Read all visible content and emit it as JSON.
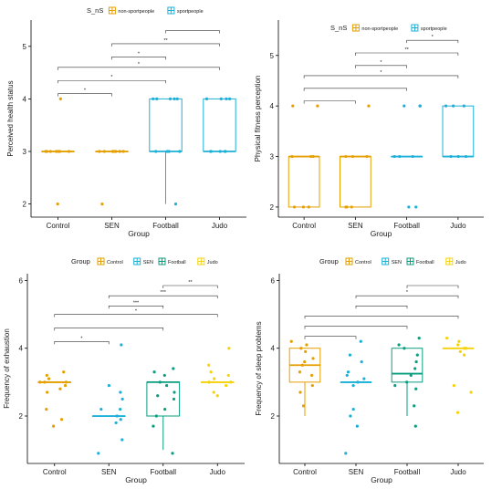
{
  "colors": {
    "orange": "#e69f00",
    "blue": "#1cb0d9",
    "teal": "#0a9e80",
    "yellow": "#f5d20a",
    "axis": "#000000",
    "bracket": "#333333"
  },
  "chart_data": [
    {
      "type": "box",
      "xlabel": "Group",
      "ylabel": "Perceived health status",
      "categories": [
        "Control",
        "SEN",
        "Football",
        "Judo"
      ],
      "yticks": [
        2,
        3,
        4,
        5
      ],
      "ylim": [
        1.75,
        5.5
      ],
      "legend": {
        "title": "S_nS",
        "placement": "top",
        "entries": [
          {
            "label": "non-sportpeople",
            "color": "#e69f00"
          },
          {
            "label": "sportpeople",
            "color": "#1cb0d9"
          }
        ]
      },
      "boxes": [
        {
          "q1": 3,
          "median": 3,
          "q3": 3,
          "whisker_low": 3,
          "whisker_high": 3,
          "color": "#e69f00"
        },
        {
          "q1": 3,
          "median": 3,
          "q3": 3,
          "whisker_low": 3,
          "whisker_high": 3,
          "color": "#e69f00"
        },
        {
          "q1": 3,
          "median": 3,
          "q3": 4,
          "whisker_low": 2,
          "whisker_high": 4,
          "color": "#1cb0d9"
        },
        {
          "q1": 3,
          "median": 3,
          "q3": 4,
          "whisker_low": 3,
          "whisker_high": 4,
          "color": "#1cb0d9"
        }
      ],
      "points": [
        {
          "group": 0,
          "values": [
            2,
            3,
            3,
            3,
            3,
            3,
            3,
            3,
            4
          ]
        },
        {
          "group": 1,
          "values": [
            2,
            3,
            3,
            3,
            3,
            3,
            3,
            3,
            3
          ]
        },
        {
          "group": 2,
          "values": [
            2,
            3,
            3,
            3,
            3,
            4,
            4,
            4,
            4,
            4
          ]
        },
        {
          "group": 3,
          "values": [
            3,
            3,
            3,
            3,
            3,
            4,
            4,
            4,
            4
          ]
        }
      ],
      "brackets": [
        {
          "from": 0,
          "to": 1,
          "y": 4.1,
          "label": "*"
        },
        {
          "from": 0,
          "to": 2,
          "y": 4.35,
          "label": "*"
        },
        {
          "from": 0,
          "to": 3,
          "y": 4.6,
          "label": "*"
        },
        {
          "from": 1,
          "to": 2,
          "y": 4.8,
          "label": "*"
        },
        {
          "from": 1,
          "to": 3,
          "y": 5.05,
          "label": "**"
        },
        {
          "from": 2,
          "to": 3,
          "y": 5.3,
          "label": ""
        }
      ]
    },
    {
      "type": "box",
      "xlabel": "Group",
      "ylabel": "Physical fitness perception",
      "categories": [
        "Control",
        "SEN",
        "Football",
        "Judo"
      ],
      "yticks": [
        2,
        3,
        4,
        5
      ],
      "ylim": [
        1.8,
        5.7
      ],
      "legend": {
        "title": "S_nS",
        "placement": "top",
        "entries": [
          {
            "label": "non-sportpeople",
            "color": "#e69f00"
          },
          {
            "label": "sportpeople",
            "color": "#1cb0d9"
          }
        ]
      },
      "boxes": [
        {
          "q1": 2,
          "median": 3,
          "q3": 3,
          "whisker_low": 2,
          "whisker_high": 3,
          "color": "#e69f00"
        },
        {
          "q1": 2,
          "median": 3,
          "q3": 3,
          "whisker_low": 2,
          "whisker_high": 3,
          "color": "#e69f00"
        },
        {
          "q1": 3,
          "median": 3,
          "q3": 3,
          "whisker_low": 3,
          "whisker_high": 3,
          "color": "#1cb0d9"
        },
        {
          "q1": 3,
          "median": 3,
          "q3": 4,
          "whisker_low": 3,
          "whisker_high": 4,
          "color": "#1cb0d9"
        }
      ],
      "points": [
        {
          "group": 0,
          "values": [
            2,
            2,
            2,
            3,
            3,
            3,
            4,
            4
          ]
        },
        {
          "group": 1,
          "values": [
            2,
            2,
            2,
            3,
            3,
            3,
            4
          ]
        },
        {
          "group": 2,
          "values": [
            2,
            2,
            3,
            3,
            3,
            4,
            4,
            4
          ]
        },
        {
          "group": 3,
          "values": [
            3,
            3,
            3,
            4,
            4,
            4
          ]
        }
      ],
      "brackets": [
        {
          "from": 0,
          "to": 1,
          "y": 4.1,
          "label": ""
        },
        {
          "from": 0,
          "to": 2,
          "y": 4.35,
          "label": ""
        },
        {
          "from": 0,
          "to": 3,
          "y": 4.6,
          "label": "*"
        },
        {
          "from": 1,
          "to": 2,
          "y": 4.8,
          "label": "*"
        },
        {
          "from": 1,
          "to": 3,
          "y": 5.05,
          "label": "**"
        },
        {
          "from": 2,
          "to": 3,
          "y": 5.3,
          "label": "*"
        }
      ]
    },
    {
      "type": "box",
      "xlabel": "Group",
      "ylabel": "Frequency of exhaustion",
      "categories": [
        "Control",
        "SEN",
        "Football",
        "Judo"
      ],
      "yticks": [
        2,
        4,
        6
      ],
      "ylim": [
        0.6,
        6.2
      ],
      "legend": {
        "title": "Group",
        "placement": "top",
        "entries": [
          {
            "label": "Control",
            "color": "#e69f00"
          },
          {
            "label": "SEN",
            "color": "#1cb0d9"
          },
          {
            "label": "Football",
            "color": "#0a9e80"
          },
          {
            "label": "Judo",
            "color": "#f5d20a"
          }
        ]
      },
      "boxes": [
        {
          "q1": 3,
          "median": 3,
          "q3": 3,
          "whisker_low": 3,
          "whisker_high": 3,
          "color": "#e69f00"
        },
        {
          "q1": 2,
          "median": 2,
          "q3": 2,
          "whisker_low": 2,
          "whisker_high": 2,
          "color": "#1cb0d9"
        },
        {
          "q1": 2,
          "median": 3,
          "q3": 3,
          "whisker_low": 1,
          "whisker_high": 3,
          "color": "#0a9e80"
        },
        {
          "q1": 3,
          "median": 3,
          "q3": 3,
          "whisker_low": 3,
          "whisker_high": 3,
          "color": "#f5d20a"
        }
      ],
      "points": [
        {
          "group": 0,
          "values": [
            1.7,
            1.9,
            2.2,
            2.7,
            2.8,
            3.0,
            3.0,
            3.1,
            3.2,
            3.3,
            3.0,
            2.9
          ]
        },
        {
          "group": 1,
          "values": [
            0.9,
            1.3,
            1.8,
            1.9,
            2.0,
            2.2,
            2.2,
            2.5,
            2.7,
            2.9,
            4.1
          ]
        },
        {
          "group": 2,
          "values": [
            0.9,
            1.7,
            2.0,
            2.2,
            2.5,
            2.6,
            2.7,
            2.9,
            3.2,
            3.3,
            3.4,
            3.0
          ]
        },
        {
          "group": 3,
          "values": [
            2.6,
            2.7,
            2.9,
            3.0,
            3.0,
            3.1,
            3.2,
            3.3,
            3.5,
            4.0
          ]
        }
      ],
      "brackets": [
        {
          "from": 0,
          "to": 1,
          "y": 4.2,
          "label": "*"
        },
        {
          "from": 0,
          "to": 2,
          "y": 4.6,
          "label": ""
        },
        {
          "from": 0,
          "to": 3,
          "y": 5.0,
          "label": "*"
        },
        {
          "from": 1,
          "to": 2,
          "y": 5.25,
          "label": "***"
        },
        {
          "from": 1,
          "to": 3,
          "y": 5.55,
          "label": "***"
        },
        {
          "from": 2,
          "to": 3,
          "y": 5.85,
          "label": "**"
        }
      ]
    },
    {
      "type": "box",
      "xlabel": "Group",
      "ylabel": "Frequency of sleep problems",
      "categories": [
        "Control",
        "SEN",
        "Football",
        "Judo"
      ],
      "yticks": [
        2,
        4,
        6
      ],
      "ylim": [
        0.6,
        6.2
      ],
      "legend": {
        "title": "Group",
        "placement": "top",
        "entries": [
          {
            "label": "Control",
            "color": "#e69f00"
          },
          {
            "label": "SEN",
            "color": "#1cb0d9"
          },
          {
            "label": "Football",
            "color": "#0a9e80"
          },
          {
            "label": "Judo",
            "color": "#f5d20a"
          }
        ]
      },
      "boxes": [
        {
          "q1": 3,
          "median": 3.5,
          "q3": 4,
          "whisker_low": 2,
          "whisker_high": 4,
          "color": "#e69f00"
        },
        {
          "q1": 3,
          "median": 3,
          "q3": 3,
          "whisker_low": 3,
          "whisker_high": 3,
          "color": "#1cb0d9"
        },
        {
          "q1": 3,
          "median": 3.25,
          "q3": 4,
          "whisker_low": 2,
          "whisker_high": 4,
          "color": "#0a9e80"
        },
        {
          "q1": 4,
          "median": 4,
          "q3": 4,
          "whisker_low": 4,
          "whisker_high": 4,
          "color": "#f5d20a"
        }
      ],
      "points": [
        {
          "group": 0,
          "values": [
            2.3,
            2.7,
            2.9,
            3.2,
            3.3,
            3.6,
            3.7,
            3.9,
            4.1,
            4.2,
            4.0,
            3.5
          ]
        },
        {
          "group": 1,
          "values": [
            0.9,
            1.7,
            2.0,
            2.2,
            2.9,
            3.0,
            3.1,
            3.2,
            3.3,
            3.6,
            3.8,
            4.2
          ]
        },
        {
          "group": 2,
          "values": [
            1.7,
            2.3,
            2.8,
            2.9,
            3.0,
            3.2,
            3.4,
            3.6,
            3.8,
            4.0,
            4.1,
            4.3
          ]
        },
        {
          "group": 3,
          "values": [
            2.1,
            2.7,
            2.9,
            3.8,
            3.9,
            4.0,
            4.0,
            4.1,
            4.2,
            4.3
          ]
        }
      ],
      "brackets": [
        {
          "from": 0,
          "to": 1,
          "y": 4.35,
          "label": ""
        },
        {
          "from": 0,
          "to": 2,
          "y": 4.65,
          "label": ""
        },
        {
          "from": 0,
          "to": 3,
          "y": 4.95,
          "label": ""
        },
        {
          "from": 1,
          "to": 2,
          "y": 5.25,
          "label": ""
        },
        {
          "from": 1,
          "to": 3,
          "y": 5.55,
          "label": "*"
        },
        {
          "from": 2,
          "to": 3,
          "y": 5.85,
          "label": ""
        }
      ]
    }
  ]
}
